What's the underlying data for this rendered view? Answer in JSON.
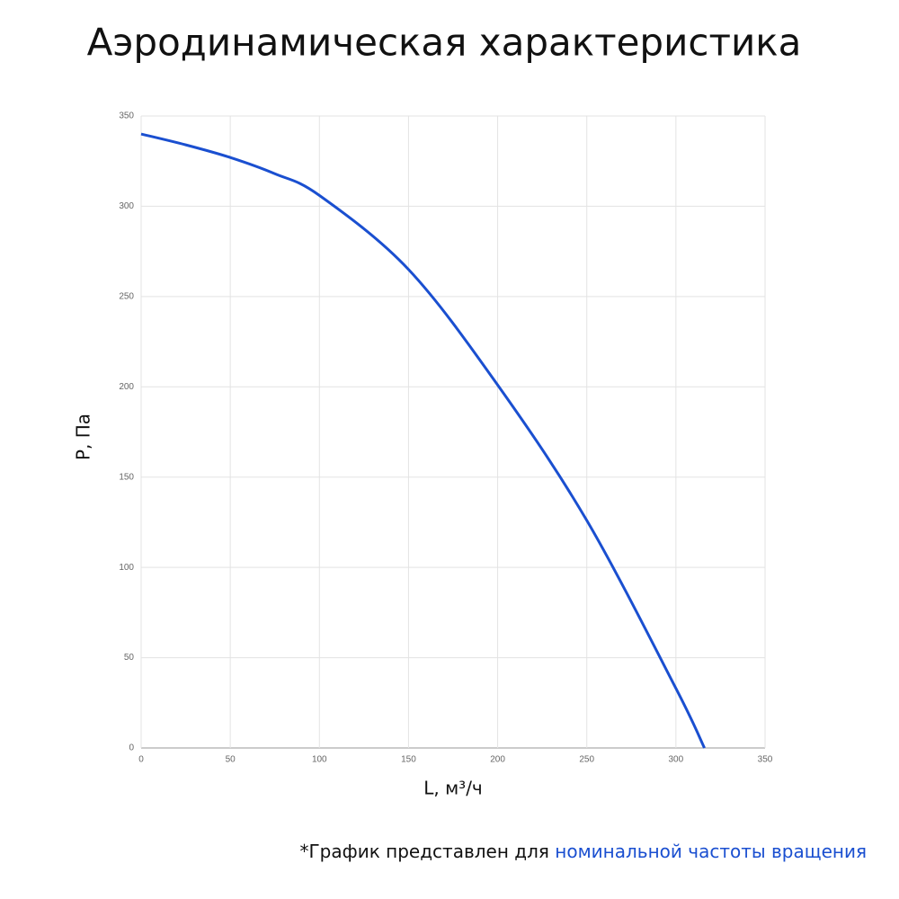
{
  "chart_data": {
    "type": "line",
    "title": "Аэродинамическая характеристика",
    "x_label": "L, м³/ч",
    "y_label": "P, Па",
    "footnote": "*График представлен для",
    "footnote_highlight": "номинальной частоты вращения",
    "x": [
      0,
      25,
      50,
      75,
      100,
      150,
      200,
      250,
      300,
      316
    ],
    "series": [
      {
        "name": "P",
        "color": "#1a4fd0",
        "values": [
          340,
          334,
          327,
          318,
          306,
          265,
          201,
          126,
          33,
          0
        ]
      }
    ],
    "xlim": [
      0,
      350
    ],
    "ylim": [
      0,
      350
    ],
    "xticks": [
      0,
      50,
      100,
      150,
      200,
      250,
      300,
      350
    ],
    "yticks": [
      0,
      50,
      100,
      150,
      200,
      250,
      300,
      350
    ],
    "grid": true
  }
}
